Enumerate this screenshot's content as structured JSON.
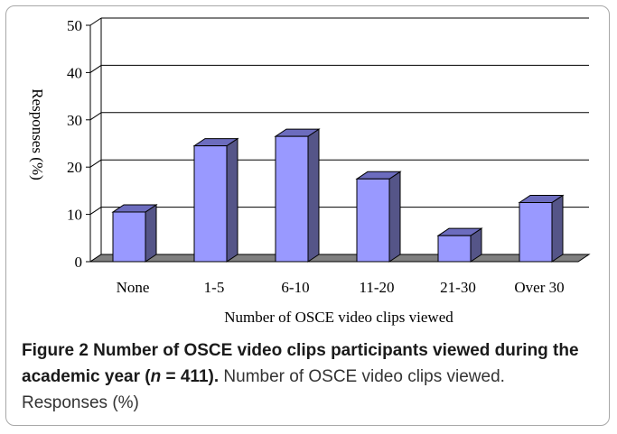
{
  "chart_data": {
    "type": "bar",
    "categories": [
      "None",
      "1-5",
      "6-10",
      "11-20",
      "21-30",
      "Over 30"
    ],
    "values": [
      10.5,
      24.5,
      26.5,
      17.5,
      5.5,
      12.5
    ],
    "xlabel": "Number of OSCE video clips viewed",
    "ylabel": "Responses (%)",
    "ylim": [
      0,
      50
    ],
    "yticks": [
      "0",
      "10",
      "20",
      "30",
      "40",
      "50"
    ],
    "grid": true,
    "bar_style": "3d",
    "colors": {
      "bar_front": "#9999ff",
      "bar_side": "#555588",
      "bar_top": "#6c6cbe",
      "floor": "#808080",
      "grid": "#000000"
    }
  },
  "caption": {
    "bold_part": "Figure 2 Number of OSCE video clips participants viewed during the academic year (",
    "n_italic": "n",
    "bold_part_2": " = 411).",
    "rest": " Number of OSCE video clips viewed. Responses (%)"
  }
}
